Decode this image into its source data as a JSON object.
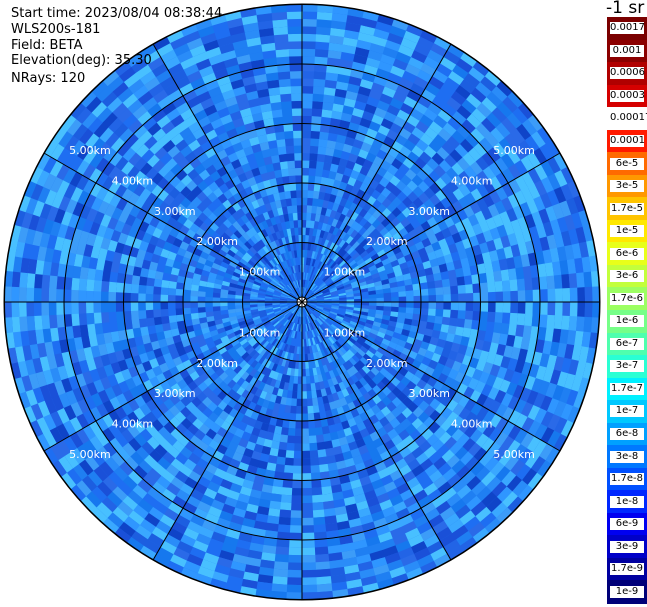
{
  "header": {
    "start_time": "Start time: 2023/08/04 08:38:44",
    "instrument": "WLS200s-181",
    "field": "Field: BETA",
    "elevation": "Elevation(deg): 35.30",
    "nrays": "NRays: 120"
  },
  "colorbar": {
    "title": "-1 sr",
    "labels": [
      "0.0017",
      "0.001",
      "0.0006",
      "0.0003",
      "0.00017",
      "0.0001",
      "6e-5",
      "3e-5",
      "1.7e-5",
      "1e-5",
      "6e-6",
      "3e-6",
      "1.7e-6",
      "1e-6",
      "6e-7",
      "3e-7",
      "1.7e-7",
      "1e-7",
      "6e-8",
      "3e-8",
      "1.7e-8",
      "1e-8",
      "6e-9",
      "3e-9",
      "1.7e-9",
      "1e-9"
    ],
    "colors": [
      "#7a0000",
      "#8b0000",
      "#b00000",
      "#d50000",
      "#ffffff",
      "#ff1a00",
      "#ff6a00",
      "#ff9800",
      "#ffc400",
      "#ffe800",
      "#e8ff1a",
      "#c2ff3c",
      "#9cff62",
      "#76ff88",
      "#4fffae",
      "#2affd4",
      "#00f0ff",
      "#00c8ff",
      "#00a0ff",
      "#0078ff",
      "#0050ff",
      "#0028ff",
      "#0000f0",
      "#0000c8",
      "#0000a0",
      "#000078"
    ]
  },
  "range_labels": {
    "r1": "1.00km",
    "r2": "2.00km",
    "r3": "3.00km",
    "r4": "4.00km",
    "r5": "5.00km"
  }
}
